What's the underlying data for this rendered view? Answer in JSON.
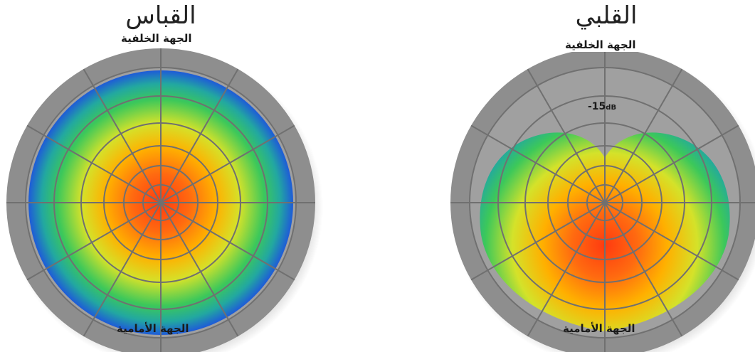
{
  "diagrams": [
    {
      "title": "القباس",
      "rear_label": "الجهة الخلفية",
      "front_label": "الجهة الأمامية"
    },
    {
      "title": "القلبي",
      "rear_label": "الجهة الخلفية",
      "front_label": "الجهة الأمامية",
      "level_value": "-15",
      "level_unit": "dB"
    }
  ],
  "colors": {
    "ring": "#8c8c8c",
    "inner": "#9e9e9e",
    "grid": "#6f6f6f",
    "hot": "#ff3a10",
    "warm": "#ffb000",
    "mid": "#c8e62a",
    "cool": "#22c46a",
    "cold": "#1e5bd8"
  }
}
